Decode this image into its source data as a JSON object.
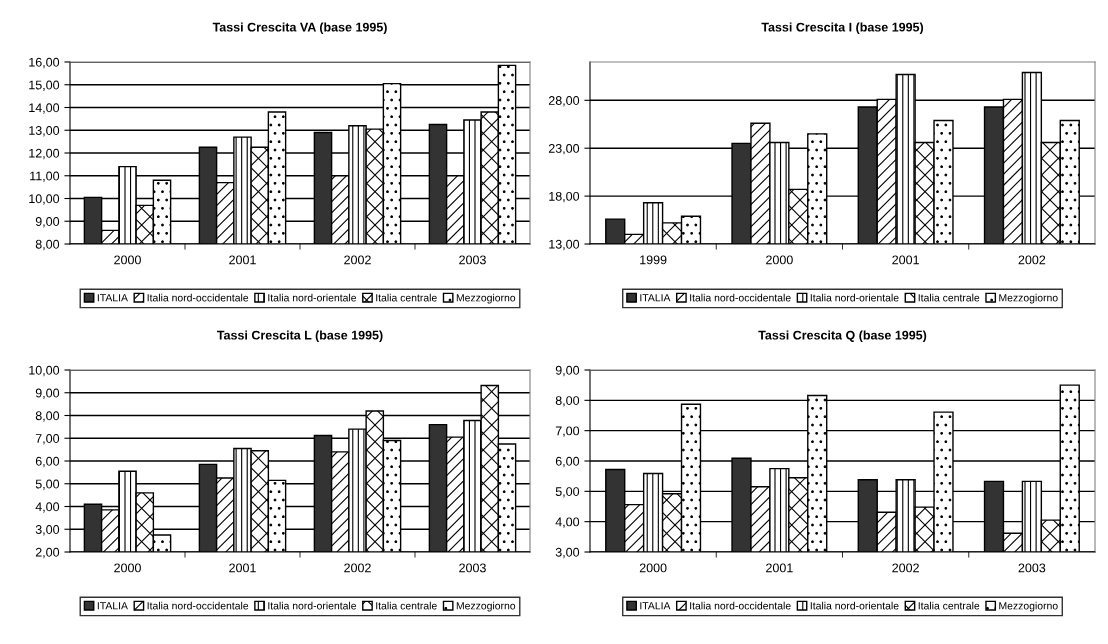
{
  "chart_data": [
    {
      "type": "bar",
      "title": "Tassi Crescita VA (base 1995)",
      "categories": [
        "2000",
        "2001",
        "2002",
        "2003"
      ],
      "series": [
        {
          "name": "ITALIA",
          "color": "#333333",
          "values": [
            10.05,
            12.25,
            12.9,
            13.25
          ]
        },
        {
          "name": "Italia nord-occidentale",
          "color": "#ffffff",
          "values": [
            8.6,
            10.7,
            11.0,
            11.0
          ]
        },
        {
          "name": "Italia nord-orientale",
          "color": "#ffffff",
          "values": [
            11.4,
            12.7,
            13.2,
            13.45
          ]
        },
        {
          "name": "Italia centrale",
          "color": "#ffffff",
          "values": [
            9.7,
            12.25,
            13.05,
            13.8
          ]
        },
        {
          "name": "Mezzogiorno",
          "color": "#ffffff",
          "values": [
            10.8,
            13.8,
            15.05,
            15.85
          ]
        }
      ],
      "ylim": [
        8,
        16
      ],
      "yticks": [
        {
          "value": 8,
          "label": "8,00"
        },
        {
          "value": 9,
          "label": "9,00"
        },
        {
          "value": 10,
          "label": "10,00"
        },
        {
          "value": 11,
          "label": "11,00"
        },
        {
          "value": 12,
          "label": "12,00"
        },
        {
          "value": 13,
          "label": "13,00"
        },
        {
          "value": 14,
          "label": "14,00"
        },
        {
          "value": 15,
          "label": "15,00"
        },
        {
          "value": 16,
          "label": "16,00"
        }
      ],
      "grid": "y",
      "legend": "bottom"
    },
    {
      "type": "bar",
      "title": "Tassi Crescita I (base 1995)",
      "categories": [
        "1999",
        "2000",
        "2001",
        "2002"
      ],
      "series": [
        {
          "name": "ITALIA",
          "color": "#333333",
          "values": [
            15.6,
            23.5,
            27.3,
            27.3
          ]
        },
        {
          "name": "Italia nord-occidentale",
          "color": "#ffffff",
          "values": [
            14.0,
            25.6,
            28.1,
            28.1
          ]
        },
        {
          "name": "Italia nord-orientale",
          "color": "#ffffff",
          "values": [
            17.3,
            23.6,
            30.7,
            30.9
          ]
        },
        {
          "name": "Italia centrale",
          "color": "#ffffff",
          "values": [
            15.2,
            18.7,
            23.6,
            23.6
          ]
        },
        {
          "name": "Mezzogiorno",
          "color": "#ffffff",
          "values": [
            15.9,
            24.5,
            25.9,
            25.9
          ]
        }
      ],
      "ylim": [
        13,
        32
      ],
      "yticks": [
        {
          "value": 13,
          "label": "13,00"
        },
        {
          "value": 18,
          "label": "18,00"
        },
        {
          "value": 23,
          "label": "23,00"
        },
        {
          "value": 28,
          "label": "28,00"
        }
      ],
      "grid": "y",
      "legend": "bottom"
    },
    {
      "type": "bar",
      "title": "Tassi Crescita L (base 1995)",
      "categories": [
        "2000",
        "2001",
        "2002",
        "2003"
      ],
      "series": [
        {
          "name": "ITALIA",
          "color": "#333333",
          "values": [
            4.1,
            5.85,
            7.12,
            7.6
          ]
        },
        {
          "name": "Italia nord-occidentale",
          "color": "#ffffff",
          "values": [
            3.85,
            5.25,
            6.4,
            7.05
          ]
        },
        {
          "name": "Italia nord-orientale",
          "color": "#ffffff",
          "values": [
            5.55,
            6.55,
            7.4,
            7.78
          ]
        },
        {
          "name": "Italia centrale",
          "color": "#ffffff",
          "values": [
            4.6,
            6.45,
            8.2,
            9.32
          ]
        },
        {
          "name": "Mezzogiorno",
          "color": "#ffffff",
          "values": [
            2.75,
            5.15,
            6.9,
            6.75
          ]
        }
      ],
      "ylim": [
        2,
        10
      ],
      "yticks": [
        {
          "value": 2,
          "label": "2,00"
        },
        {
          "value": 3,
          "label": "3,00"
        },
        {
          "value": 4,
          "label": "4,00"
        },
        {
          "value": 5,
          "label": "5,00"
        },
        {
          "value": 6,
          "label": "6,00"
        },
        {
          "value": 7,
          "label": "7,00"
        },
        {
          "value": 8,
          "label": "8,00"
        },
        {
          "value": 9,
          "label": "9,00"
        },
        {
          "value": 10,
          "label": "10,00"
        }
      ],
      "grid": "y",
      "legend": "bottom"
    },
    {
      "type": "bar",
      "title": "Tassi Crescita Q (base 1995)",
      "categories": [
        "2000",
        "2001",
        "2002",
        "2003"
      ],
      "series": [
        {
          "name": "ITALIA",
          "color": "#333333",
          "values": [
            5.72,
            6.09,
            5.38,
            5.33
          ]
        },
        {
          "name": "Italia nord-occidentale",
          "color": "#ffffff",
          "values": [
            4.56,
            5.15,
            4.31,
            3.62
          ]
        },
        {
          "name": "Italia nord-orientale",
          "color": "#ffffff",
          "values": [
            5.59,
            5.75,
            5.38,
            5.33
          ]
        },
        {
          "name": "Italia centrale",
          "color": "#ffffff",
          "values": [
            4.92,
            5.45,
            4.48,
            4.05
          ]
        },
        {
          "name": "Mezzogiorno",
          "color": "#ffffff",
          "values": [
            7.87,
            8.16,
            7.61,
            8.5
          ]
        }
      ],
      "ylim": [
        3,
        9
      ],
      "yticks": [
        {
          "value": 3,
          "label": "3,00"
        },
        {
          "value": 4,
          "label": "4,00"
        },
        {
          "value": 5,
          "label": "5,00"
        },
        {
          "value": 6,
          "label": "6,00"
        },
        {
          "value": 7,
          "label": "7,00"
        },
        {
          "value": 8,
          "label": "8,00"
        },
        {
          "value": 9,
          "label": "9,00"
        }
      ],
      "grid": "y",
      "legend": "bottom"
    }
  ]
}
